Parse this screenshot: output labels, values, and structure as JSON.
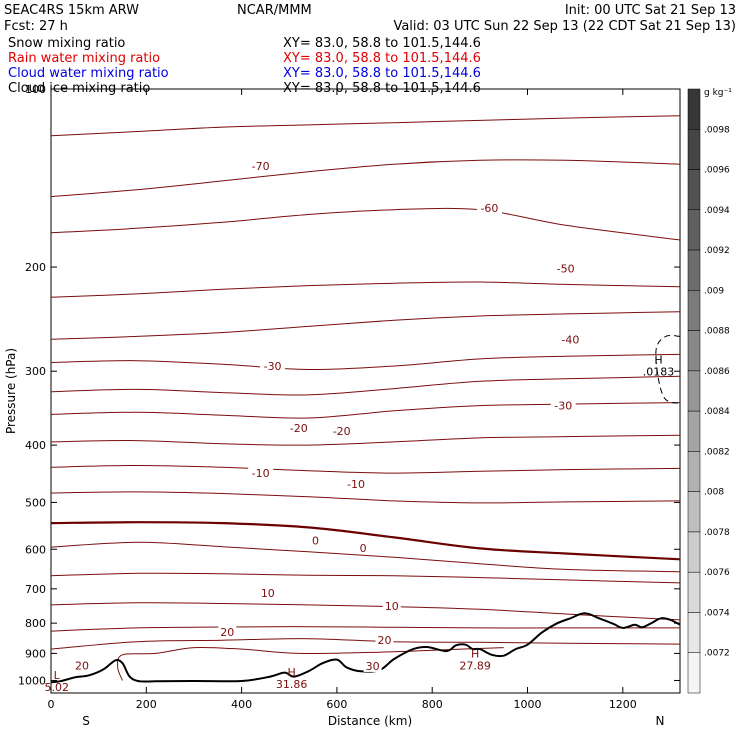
{
  "header": {
    "model": "SEAC4RS 15km ARW",
    "fcst": "Fcst:   27 h",
    "center": "NCAR/MMM",
    "init": "Init: 00 UTC Sat 21 Sep 13",
    "valid": "Valid: 03 UTC Sun 22 Sep 13 (22 CDT Sat 21 Sep 13)"
  },
  "fields": [
    {
      "name": "Snow mixing ratio",
      "xy": "XY=  83.0, 58.8 to 101.5,144.6",
      "color": "#000000"
    },
    {
      "name": "Rain water mixing ratio",
      "xy": "XY=  83.0, 58.8 to 101.5,144.6",
      "color": "#e00000"
    },
    {
      "name": "Cloud water mixing ratio",
      "xy": "XY=  83.0, 58.8 to 101.5,144.6",
      "color": "#0000e0"
    },
    {
      "name": "Cloud ice mixing ratio",
      "xy": "XY=  83.0, 58.8 to 101.5,144.6",
      "color": "#000000"
    }
  ],
  "chart_data": {
    "type": "line",
    "xlabel": "Distance (km)",
    "ylabel": "Pressure (hPa)",
    "xlim": [
      0,
      1320
    ],
    "ylim": [
      1050,
      100
    ],
    "y_log": true,
    "xticks": [
      0,
      200,
      400,
      600,
      800,
      1000,
      1200
    ],
    "yticks": [
      200,
      300,
      400,
      500,
      600,
      700,
      800,
      900,
      1000
    ],
    "ytick_top_label": "100",
    "end_labels": {
      "start": "S",
      "end": "N"
    },
    "colorbar": {
      "unit": "g kg⁻¹",
      "labels": [
        ".0098",
        ".0096",
        ".0094",
        ".0092",
        ".009",
        ".0088",
        ".0086",
        ".0084",
        ".0082",
        ".008",
        ".0078",
        ".0076",
        ".0074",
        ".0072"
      ]
    },
    "isotherm_color": "#7b0d0d",
    "zero_isotherm_color": "#6b0000",
    "contour_labels": [
      {
        "text": "-70",
        "x": 440,
        "p": 135
      },
      {
        "text": "-60",
        "x": 920,
        "p": 159
      },
      {
        "text": "-50",
        "x": 1080,
        "p": 201
      },
      {
        "text": "-40",
        "x": 1090,
        "p": 265
      },
      {
        "text": "-30",
        "x": 465,
        "p": 294
      },
      {
        "text": "-30",
        "x": 1075,
        "p": 343
      },
      {
        "text": "-20",
        "x": 520,
        "p": 374
      },
      {
        "text": "-20",
        "x": 610,
        "p": 379
      },
      {
        "text": "-10",
        "x": 440,
        "p": 446
      },
      {
        "text": "-10",
        "x": 640,
        "p": 465
      },
      {
        "text": "0",
        "x": 555,
        "p": 580
      },
      {
        "text": "0",
        "x": 655,
        "p": 597
      },
      {
        "text": "10",
        "x": 455,
        "p": 712
      },
      {
        "text": "10",
        "x": 715,
        "p": 748
      },
      {
        "text": "20",
        "x": 370,
        "p": 828
      },
      {
        "text": "20",
        "x": 700,
        "p": 855
      },
      {
        "text": "20",
        "x": 65,
        "p": 944
      },
      {
        "text": "30",
        "x": 675,
        "p": 945
      }
    ],
    "extrema_labels": [
      {
        "text": "H",
        "value": "31.86",
        "x": 505,
        "p": 982
      },
      {
        "text": "H",
        "value": "27.89",
        "x": 890,
        "p": 915
      },
      {
        "text": "L",
        "value": "5.02",
        "x": 12,
        "p": 995
      },
      {
        "text": "H",
        "value": ".0183",
        "x": 1275,
        "p": 291
      }
    ],
    "terrain": {
      "x": [
        0,
        20,
        50,
        80,
        110,
        135,
        150,
        165,
        185,
        220,
        300,
        400,
        460,
        490,
        510,
        540,
        570,
        600,
        620,
        650,
        690,
        720,
        760,
        790,
        830,
        850,
        870,
        885,
        900,
        925,
        950,
        975,
        1000,
        1030,
        1060,
        1090,
        1120,
        1150,
        1180,
        1200,
        1225,
        1240,
        1260,
        1280,
        1300,
        1320
      ],
      "p": [
        1007,
        1003,
        988,
        980,
        958,
        925,
        935,
        985,
        1003,
        1003,
        1002,
        1002,
        985,
        970,
        985,
        965,
        935,
        922,
        950,
        965,
        960,
        920,
        885,
        878,
        892,
        872,
        870,
        885,
        885,
        905,
        908,
        885,
        870,
        830,
        802,
        785,
        770,
        785,
        802,
        815,
        805,
        813,
        800,
        785,
        790,
        805
      ]
    },
    "isotherms": [
      {
        "level": -70,
        "p": [
          120,
          118,
          116,
          115,
          114,
          113,
          112,
          111
        ]
      },
      {
        "level": -60,
        "p": [
          152,
          148,
          143,
          138,
          134,
          132,
          132,
          134
        ]
      },
      {
        "level": -50,
        "p": [
          175,
          172,
          168,
          163,
          160,
          160,
          170,
          180
        ]
      },
      {
        "level": -40,
        "p": [
          225,
          222,
          218,
          215,
          213,
          212,
          214,
          216
        ]
      },
      {
        "level": -35,
        "p": [
          265,
          262,
          258,
          252,
          246,
          242,
          240,
          238
        ]
      },
      {
        "level": -30,
        "p": [
          290,
          288,
          292,
          298,
          294,
          286,
          283,
          281
        ]
      },
      {
        "level": -25,
        "p": [
          325,
          322,
          326,
          329,
          321,
          312,
          309,
          306
        ]
      },
      {
        "level": -20,
        "p": [
          355,
          352,
          356,
          360,
          350,
          343,
          341,
          339
        ]
      },
      {
        "level": -15,
        "p": [
          395,
          393,
          398,
          400,
          395,
          389,
          387,
          385
        ]
      },
      {
        "level": -10,
        "p": [
          436,
          433,
          436,
          442,
          446,
          443,
          440,
          438
        ]
      },
      {
        "level": -5,
        "p": [
          482,
          480,
          483,
          489,
          497,
          501,
          499,
          497
        ]
      },
      {
        "level": 0,
        "p": [
          542,
          540,
          542,
          551,
          573,
          598,
          610,
          624
        ]
      },
      {
        "level": 5,
        "p": [
          595,
          584,
          594,
          606,
          619,
          635,
          649,
          655
        ]
      },
      {
        "level": 10,
        "p": [
          665,
          659,
          660,
          664,
          665,
          670,
          676,
          684
        ]
      },
      {
        "level": 15,
        "p": [
          745,
          739,
          741,
          745,
          750,
          758,
          772,
          790
        ]
      },
      {
        "level": 20,
        "p": [
          825,
          815,
          812,
          811,
          813,
          815,
          815,
          815
        ]
      },
      {
        "level": 25,
        "p": [
          885,
          860,
          855,
          850,
          860,
          862,
          865,
          868
        ]
      }
    ],
    "isotherm_x": [
      0,
      180,
      360,
      540,
      720,
      900,
      1080,
      1320
    ]
  }
}
